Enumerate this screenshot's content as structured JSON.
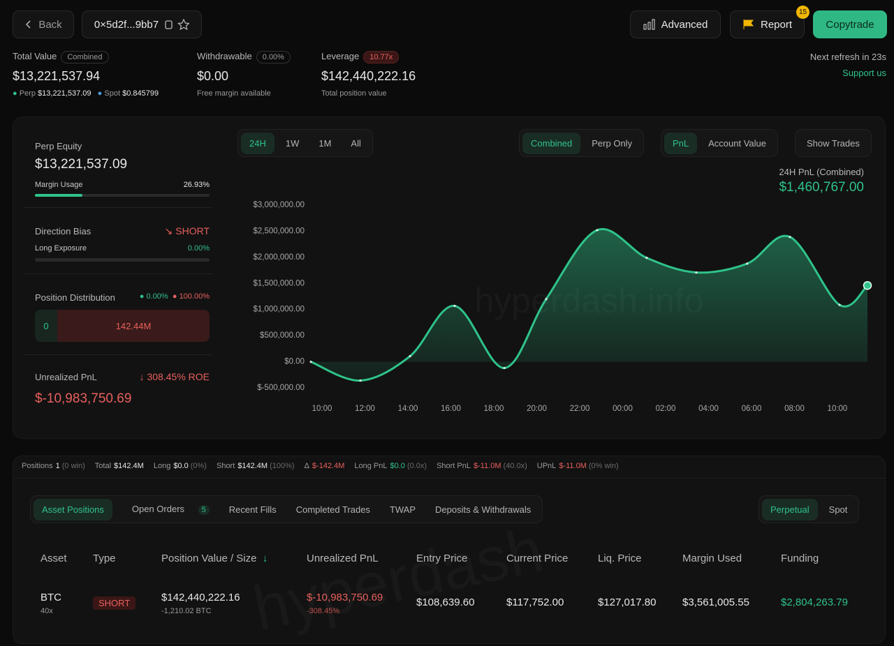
{
  "header": {
    "back": "Back",
    "address": "0×5d2f...9bb7",
    "advanced": "Advanced",
    "report": "Report",
    "report_badge": "15",
    "copytrade": "Copytrade"
  },
  "summary": {
    "total_value_label": "Total Value",
    "total_value_tag": "Combined",
    "total_value": "$13,221,537.94",
    "perp_label": "Perp",
    "perp_value": "$13,221,537.09",
    "spot_label": "Spot",
    "spot_value": "$0.845799",
    "withdrawable_label": "Withdrawable",
    "withdrawable_tag": "0.00%",
    "withdrawable": "$0.00",
    "withdrawable_sub": "Free margin available",
    "leverage_label": "Leverage",
    "leverage_tag": "10.77x",
    "leverage": "$142,440,222.16",
    "leverage_sub": "Total position value",
    "refresh": "Next refresh in 23s",
    "support": "Support us"
  },
  "side_panel": {
    "equity_label": "Perp Equity",
    "equity": "$13,221,537.09",
    "margin_label": "Margin Usage",
    "margin": "26.93%",
    "bias_label": "Direction Bias",
    "bias": "SHORT",
    "long_exposure_label": "Long Exposure",
    "long_exposure": "0.00%",
    "distribution_label": "Position Distribution",
    "dist_long": "0.00%",
    "dist_short": "100.00%",
    "dist_long_value": "0",
    "dist_short_value": "142.44M",
    "upnl_label": "Unrealized PnL",
    "upnl_roe": "308.45% ROE",
    "upnl": "$-10,983,750.69"
  },
  "chart_panel": {
    "ranges": [
      "24H",
      "1W",
      "1M",
      "All"
    ],
    "modes": [
      "Combined",
      "Perp Only"
    ],
    "metrics": [
      "PnL",
      "Account Value"
    ],
    "show_trades": "Show Trades",
    "pnl_label": "24H PnL (Combined)",
    "pnl_value": "$1,460,767.00"
  },
  "chart_data": {
    "type": "area",
    "watermark": "hyperdash.info",
    "color": "#2fc38a",
    "grid": false,
    "x": [
      9.48,
      11.79,
      14.1,
      16.18,
      18.49,
      20.44,
      22.81,
      25.12,
      27.43,
      29.8,
      31.79,
      34.1,
      35.4
    ],
    "values": [
      0,
      -360000,
      107000,
      1070000,
      -120000,
      1200000,
      2520000,
      1990000,
      1710000,
      1880000,
      2390000,
      1090000,
      1460767
    ],
    "xlim": [
      9.48,
      35.4
    ],
    "xticks": [
      {
        "value": 10,
        "label": "10:00"
      },
      {
        "value": 12,
        "label": "12:00"
      },
      {
        "value": 14,
        "label": "14:00"
      },
      {
        "value": 16,
        "label": "16:00"
      },
      {
        "value": 18,
        "label": "18:00"
      },
      {
        "value": 20,
        "label": "20:00"
      },
      {
        "value": 22,
        "label": "22:00"
      },
      {
        "value": 24,
        "label": "00:00"
      },
      {
        "value": 26,
        "label": "02:00"
      },
      {
        "value": 28,
        "label": "04:00"
      },
      {
        "value": 30,
        "label": "06:00"
      },
      {
        "value": 32,
        "label": "08:00"
      },
      {
        "value": 34,
        "label": "10:00"
      }
    ],
    "ylim": [
      -500000,
      3000000
    ],
    "yticks": [
      {
        "value": -500000,
        "label": "$-500,000.00"
      },
      {
        "value": 0,
        "label": "$0.00"
      },
      {
        "value": 500000,
        "label": "$500,000.00"
      },
      {
        "value": 1000000,
        "label": "$1,000,000.00"
      },
      {
        "value": 1500000,
        "label": "$1,500,000.00"
      },
      {
        "value": 2000000,
        "label": "$2,000,000.00"
      },
      {
        "value": 2500000,
        "label": "$2,500,000.00"
      },
      {
        "value": 3000000,
        "label": "$3,000,000.00"
      }
    ]
  },
  "stats": [
    [
      "Positions",
      "1",
      "(0 win)"
    ],
    [
      "Total",
      "$142.4M"
    ],
    [
      "Long",
      "$0.0",
      "(0%)"
    ],
    [
      "Short",
      "$142.4M",
      "(100%)"
    ],
    [
      "Δ",
      "$-142.4M"
    ],
    [
      "Long PnL",
      "$0.0",
      "(0.0x)"
    ],
    [
      "Short PnL",
      "$-11.0M",
      "(40.0x)"
    ],
    [
      "UPnL",
      "$-11.0M",
      "(0% win)"
    ]
  ],
  "tabs": {
    "items": [
      "Asset Positions",
      "Open Orders",
      "Recent Fills",
      "Completed Trades",
      "TWAP",
      "Deposits & Withdrawals"
    ],
    "open_orders_badge": "5",
    "markets": [
      "Perpetual",
      "Spot"
    ]
  },
  "table": {
    "headers": [
      "Asset",
      "Type",
      "Position Value / Size",
      "Unrealized PnL",
      "Entry Price",
      "Current Price",
      "Liq. Price",
      "Margin Used",
      "Funding"
    ],
    "rows": [
      {
        "asset": "BTC",
        "leverage": "40x",
        "type": "SHORT",
        "value": "$142,440,222.16",
        "size": "-1,210.02 BTC",
        "upnl": "$-10,983,750.69",
        "upnl_pct": "-308.45%",
        "entry": "$108,639.60",
        "current": "$117,752.00",
        "liq": "$127,017.80",
        "margin": "$3,561,005.55",
        "funding": "$2,804,263.79"
      }
    ],
    "watermark": "hyperdash"
  }
}
